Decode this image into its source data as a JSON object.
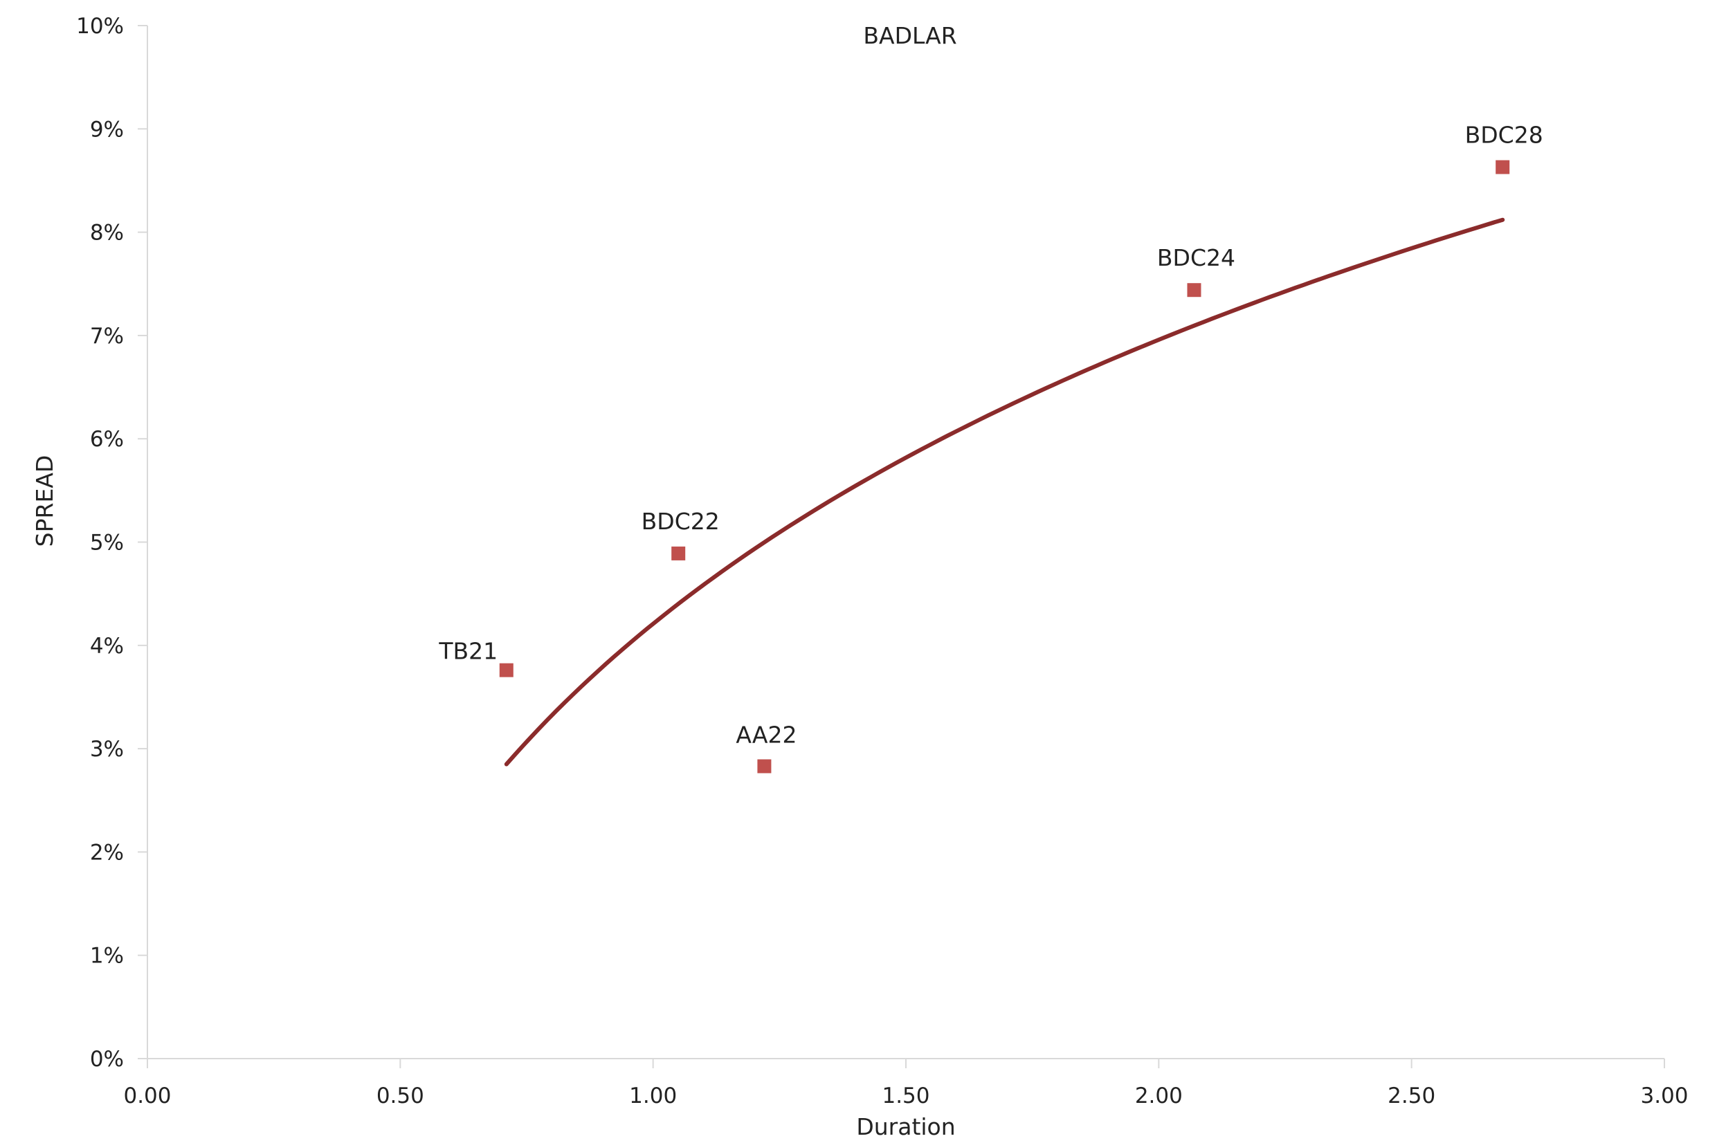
{
  "chart_data": {
    "type": "scatter",
    "title": "BADLAR",
    "xlabel": "Duration",
    "ylabel": "SPREAD",
    "xlim": [
      0,
      3
    ],
    "ylim": [
      0,
      0.1
    ],
    "x_ticks": [
      "0.00",
      "0.50",
      "1.00",
      "1.50",
      "2.00",
      "2.50",
      "3.00"
    ],
    "y_ticks": [
      "0%",
      "1%",
      "2%",
      "3%",
      "4%",
      "5%",
      "6%",
      "7%",
      "8%",
      "9%",
      "10%"
    ],
    "grid": false,
    "legend": "none",
    "series": [
      {
        "type": "scatter",
        "marker": "square",
        "color": "#c0504d",
        "points": [
          {
            "label": "TB21",
            "x": 0.71,
            "y": 0.0376
          },
          {
            "label": "BDC22",
            "x": 1.05,
            "y": 0.0489
          },
          {
            "label": "AA22",
            "x": 1.22,
            "y": 0.0283
          },
          {
            "label": "BDC24",
            "x": 2.07,
            "y": 0.0744
          },
          {
            "label": "BDC28",
            "x": 2.68,
            "y": 0.0863
          }
        ]
      },
      {
        "type": "line",
        "role": "trendline",
        "color": "#8b2b2b",
        "fit": "logarithmic",
        "x_range": [
          0.71,
          2.68
        ],
        "y_endpoints": [
          0.0285,
          0.0812
        ]
      }
    ]
  }
}
